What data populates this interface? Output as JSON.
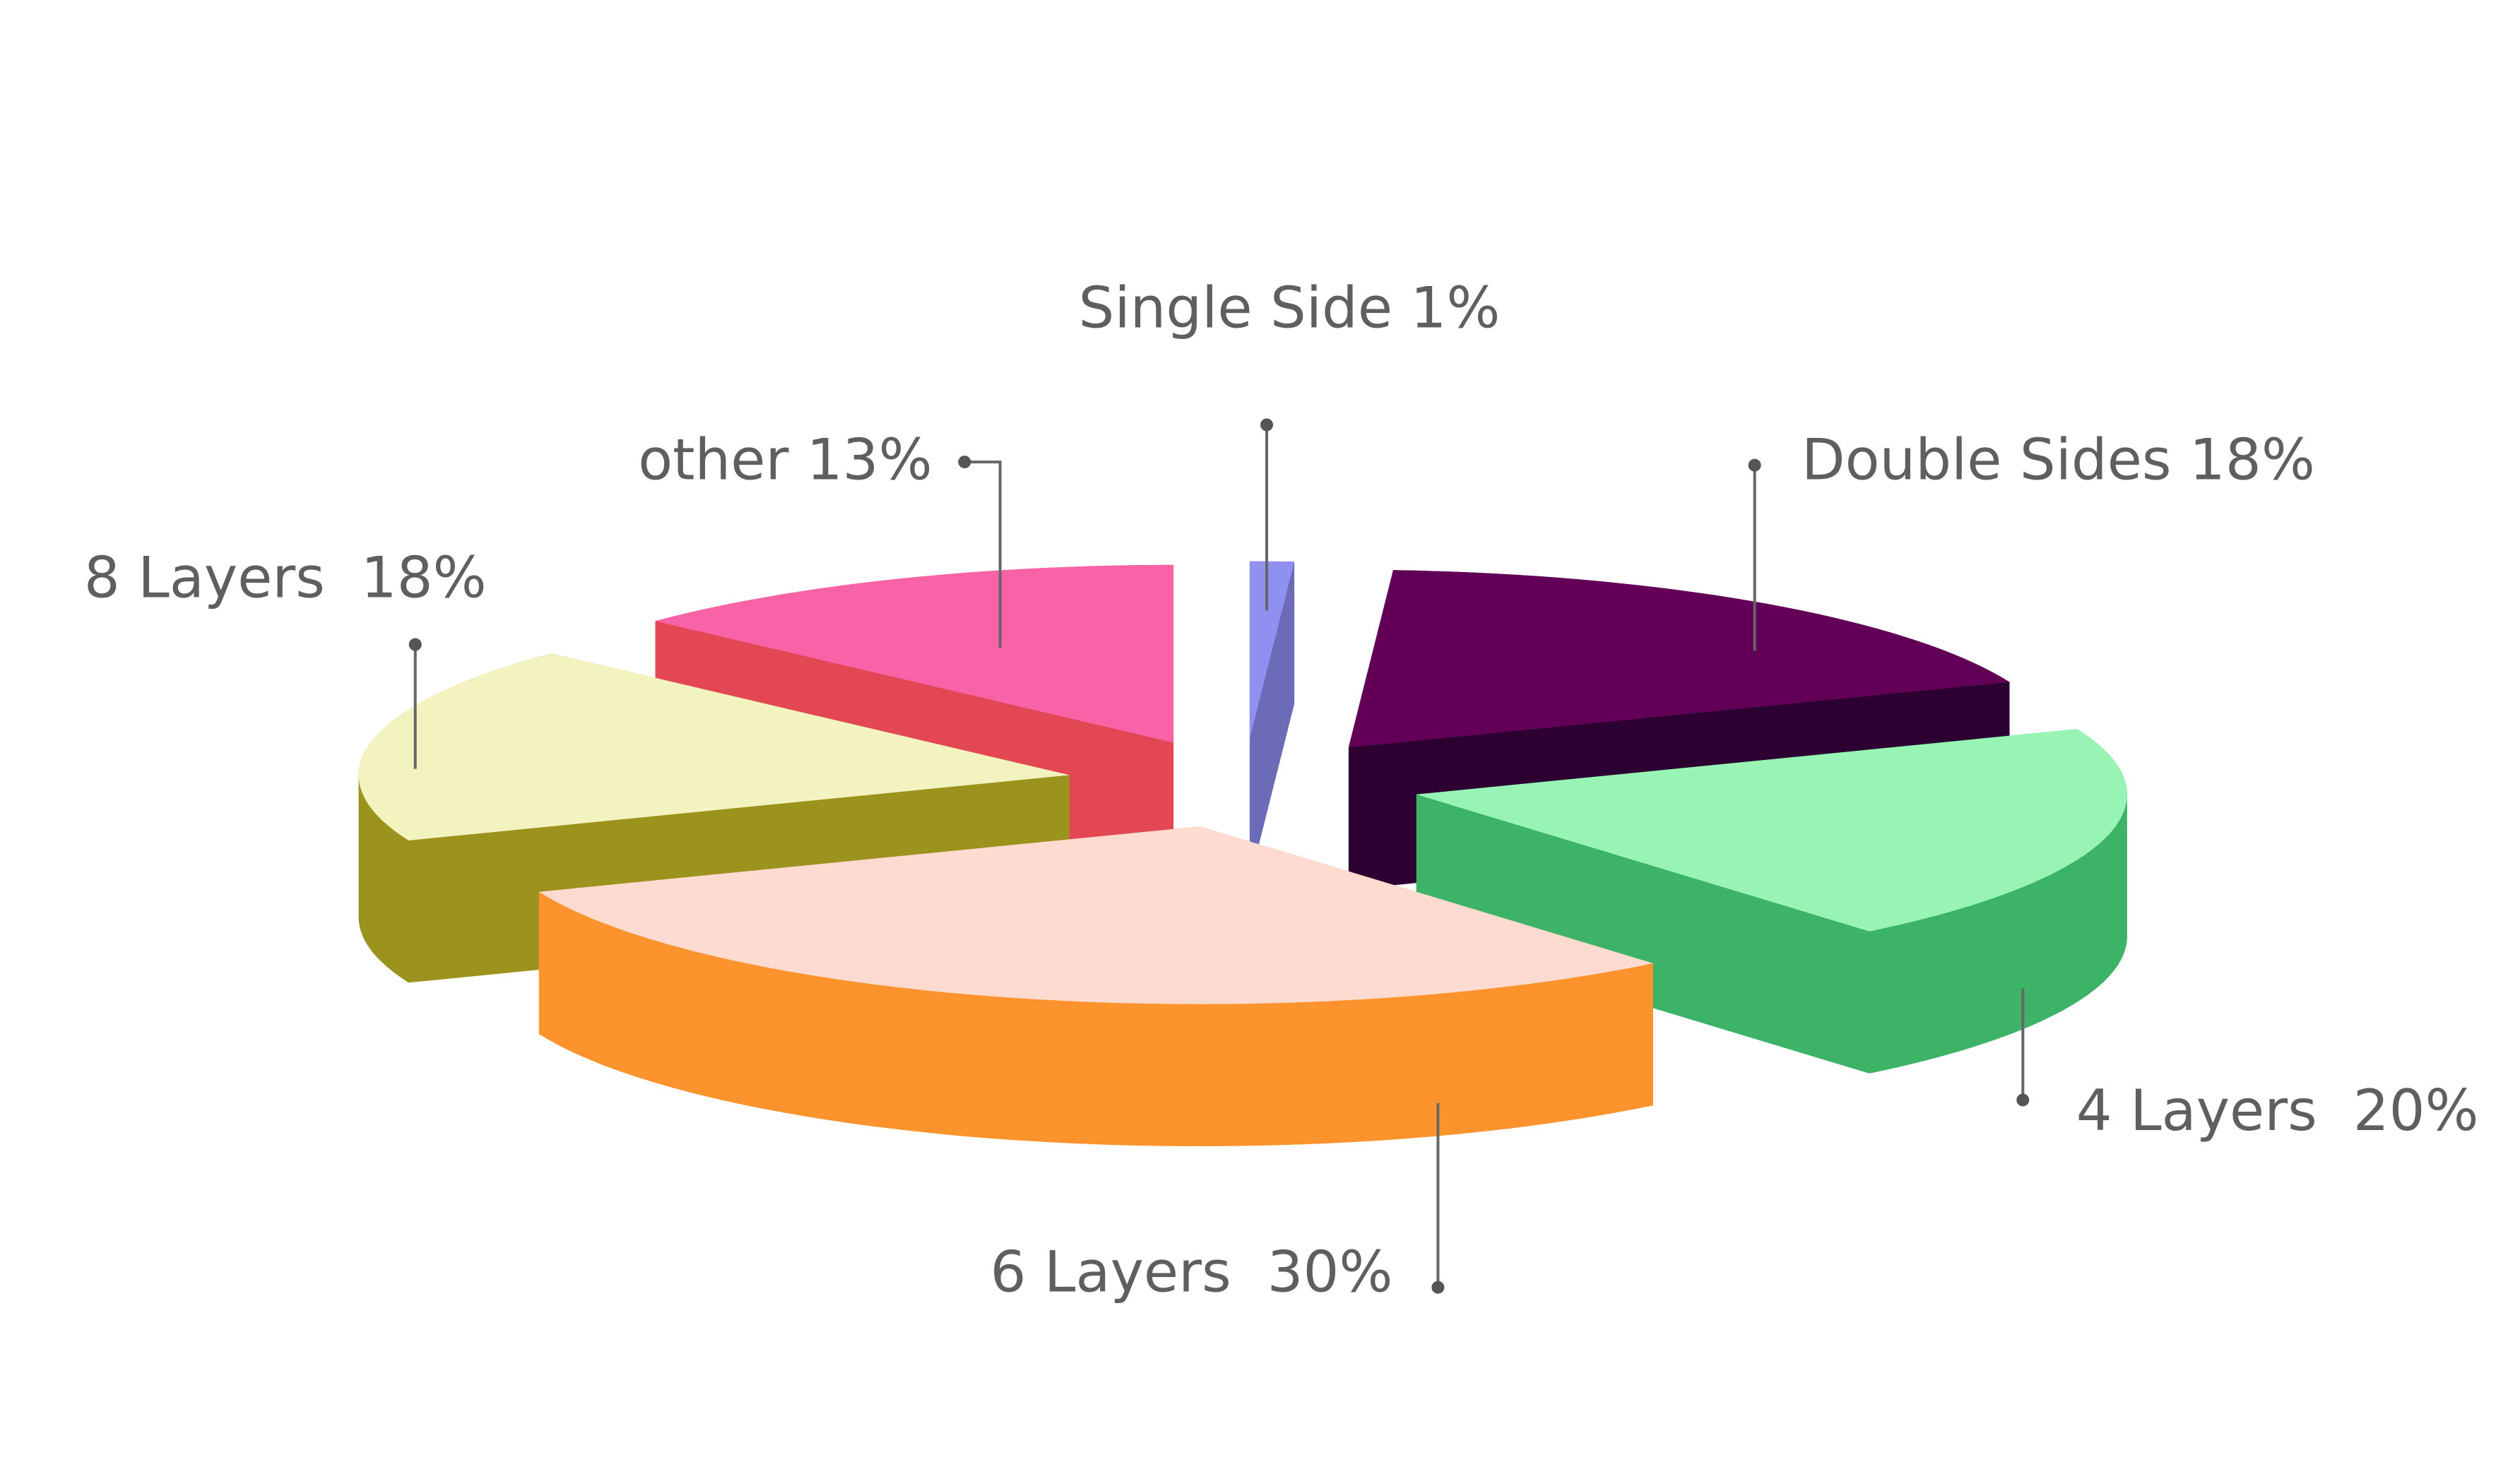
{
  "chart_data": {
    "type": "pie3d",
    "labels": [
      "Single Side 1%",
      "Double Sides 18%",
      "4 Layers  20%",
      "6 Layers  30%",
      "8 Layers  18%",
      "other 13%"
    ],
    "values": [
      1,
      18,
      20,
      30,
      18,
      13
    ],
    "colors": [
      "#9090f0",
      "#620058",
      "#97f4b4",
      "#fddbd0",
      "#f3f3c0",
      "#f763a6"
    ],
    "side_colors": [
      "#6b6bb8",
      "#2c0030",
      "#3db368",
      "#fd932c",
      "#9c921e",
      "#e24753"
    ]
  }
}
